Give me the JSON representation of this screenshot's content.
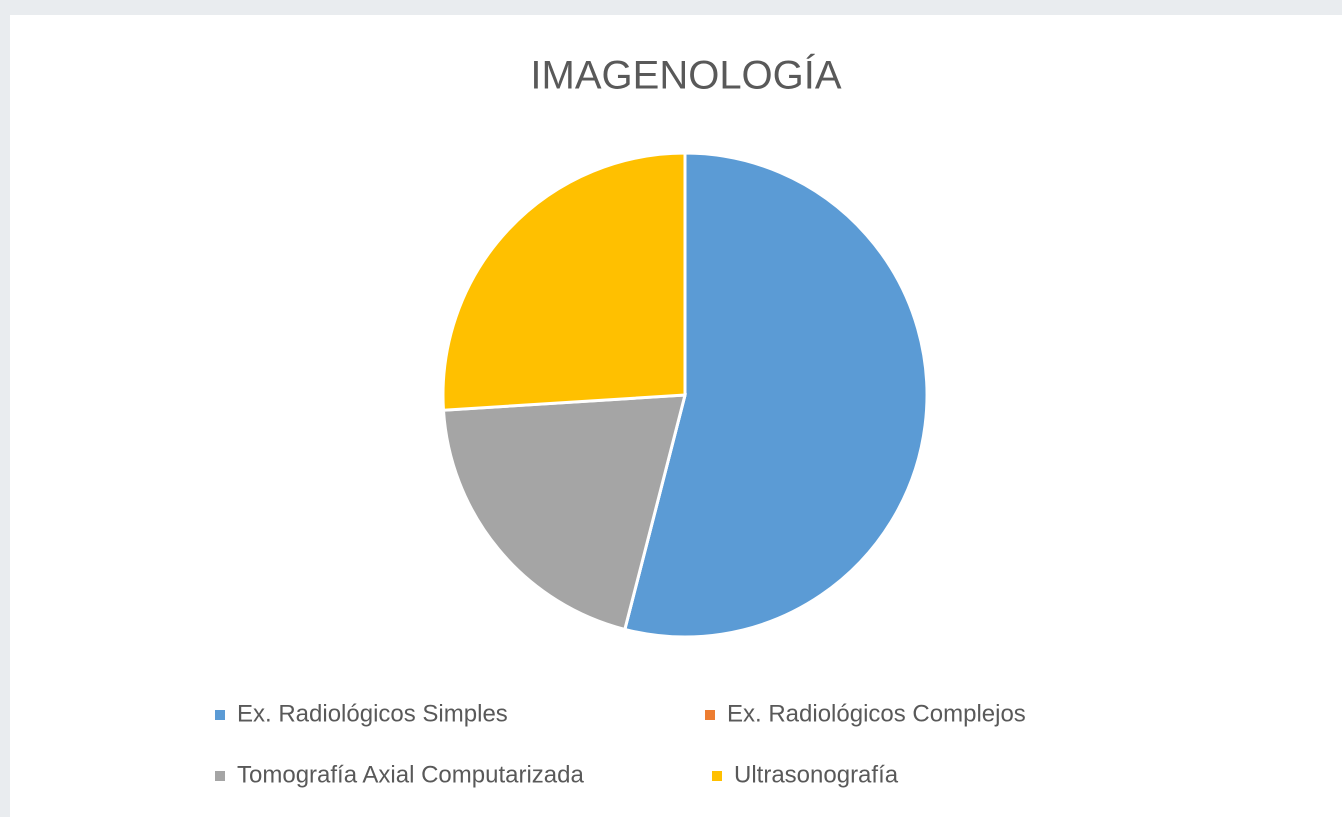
{
  "chart_data": {
    "type": "pie",
    "title": "IMAGENOLOGÍA",
    "categories": [
      "Ex. Radiológicos Simples",
      "Ex. Radiológicos Complejos",
      "Tomografía Axial Computarizada",
      "Ultrasonografía"
    ],
    "values": [
      54,
      0,
      20,
      26
    ],
    "colors": [
      "#5b9bd5",
      "#ed7d31",
      "#a5a5a5",
      "#ffc000"
    ],
    "legend": "bottom"
  }
}
